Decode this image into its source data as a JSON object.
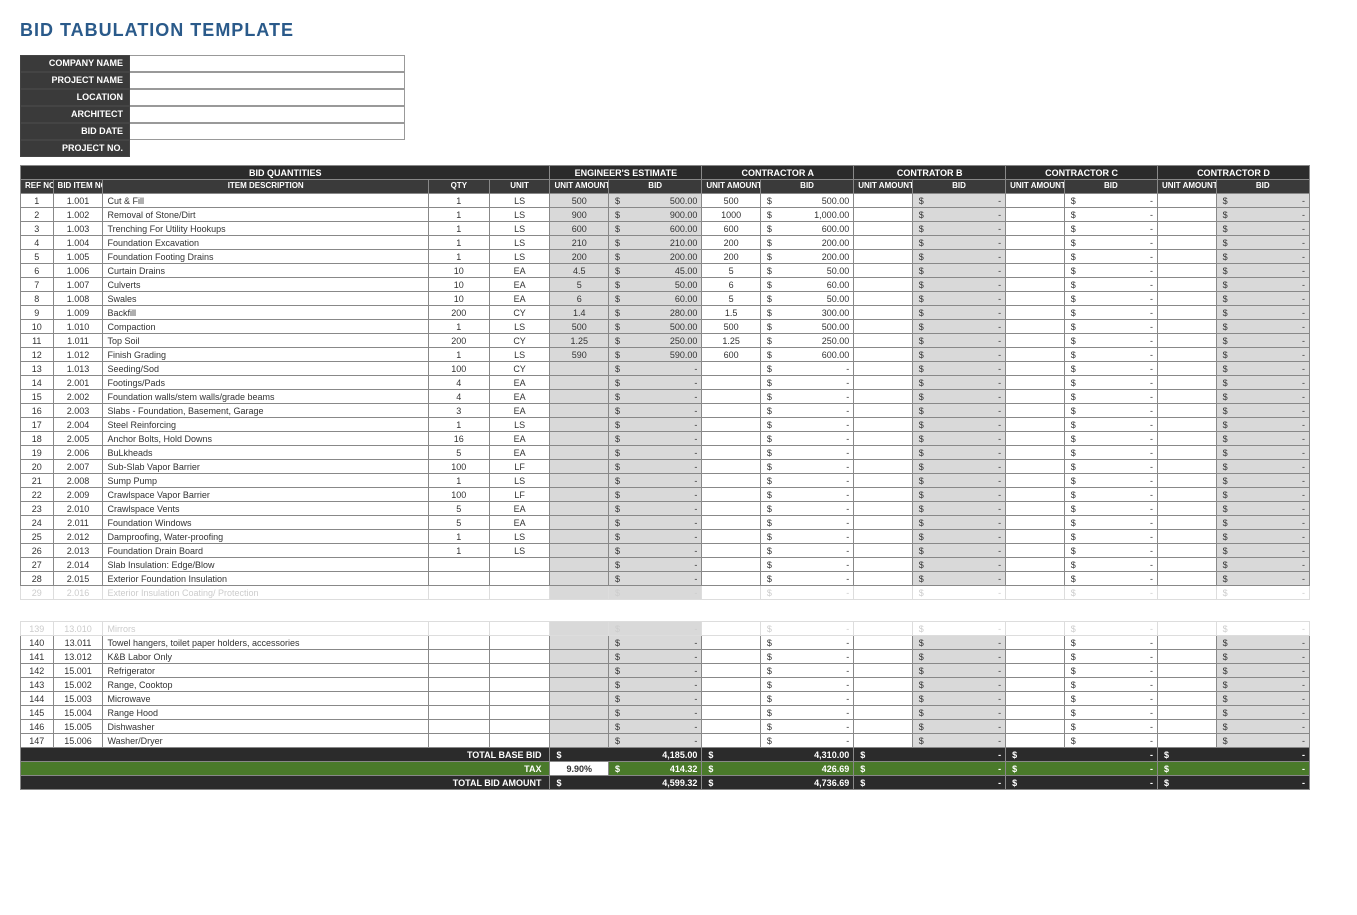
{
  "title": "BID TABULATION TEMPLATE",
  "meta_labels": [
    "COMPANY NAME",
    "PROJECT NAME",
    "LOCATION",
    "ARCHITECT",
    "BID DATE",
    "PROJECT NO."
  ],
  "group_headers": {
    "qty": "BID QUANTITIES",
    "eng": "ENGINEER'S ESTIMATE",
    "ca": "CONTRACTOR A",
    "cb": "CONTRATOR B",
    "cc": "CONTRACTOR C",
    "cd": "CONTRACTOR D"
  },
  "col_headers": {
    "ref": "REF NO.",
    "bid": "BID ITEM NO.",
    "desc": "ITEM DESCRIPTION",
    "qty": "QTY",
    "unit": "UNIT",
    "ua": "UNIT AMOUNT",
    "bidamt": "BID"
  },
  "rows_top": [
    {
      "r": "1",
      "b": "1.001",
      "d": "Cut & Fill",
      "q": "1",
      "u": "LS",
      "eu": "500",
      "eb": "500.00",
      "au": "500",
      "ab": "500.00"
    },
    {
      "r": "2",
      "b": "1.002",
      "d": "Removal of Stone/Dirt",
      "q": "1",
      "u": "LS",
      "eu": "900",
      "eb": "900.00",
      "au": "1000",
      "ab": "1,000.00"
    },
    {
      "r": "3",
      "b": "1.003",
      "d": "Trenching For Utility Hookups",
      "q": "1",
      "u": "LS",
      "eu": "600",
      "eb": "600.00",
      "au": "600",
      "ab": "600.00"
    },
    {
      "r": "4",
      "b": "1.004",
      "d": "Foundation Excavation",
      "q": "1",
      "u": "LS",
      "eu": "210",
      "eb": "210.00",
      "au": "200",
      "ab": "200.00"
    },
    {
      "r": "5",
      "b": "1.005",
      "d": "Foundation Footing Drains",
      "q": "1",
      "u": "LS",
      "eu": "200",
      "eb": "200.00",
      "au": "200",
      "ab": "200.00"
    },
    {
      "r": "6",
      "b": "1.006",
      "d": "Curtain Drains",
      "q": "10",
      "u": "EA",
      "eu": "4.5",
      "eb": "45.00",
      "au": "5",
      "ab": "50.00"
    },
    {
      "r": "7",
      "b": "1.007",
      "d": "Culverts",
      "q": "10",
      "u": "EA",
      "eu": "5",
      "eb": "50.00",
      "au": "6",
      "ab": "60.00"
    },
    {
      "r": "8",
      "b": "1.008",
      "d": "Swales",
      "q": "10",
      "u": "EA",
      "eu": "6",
      "eb": "60.00",
      "au": "5",
      "ab": "50.00"
    },
    {
      "r": "9",
      "b": "1.009",
      "d": "Backfill",
      "q": "200",
      "u": "CY",
      "eu": "1.4",
      "eb": "280.00",
      "au": "1.5",
      "ab": "300.00"
    },
    {
      "r": "10",
      "b": "1.010",
      "d": "Compaction",
      "q": "1",
      "u": "LS",
      "eu": "500",
      "eb": "500.00",
      "au": "500",
      "ab": "500.00"
    },
    {
      "r": "11",
      "b": "1.011",
      "d": "Top Soil",
      "q": "200",
      "u": "CY",
      "eu": "1.25",
      "eb": "250.00",
      "au": "1.25",
      "ab": "250.00"
    },
    {
      "r": "12",
      "b": "1.012",
      "d": "Finish Grading",
      "q": "1",
      "u": "LS",
      "eu": "590",
      "eb": "590.00",
      "au": "600",
      "ab": "600.00"
    },
    {
      "r": "13",
      "b": "1.013",
      "d": "Seeding/Sod",
      "q": "100",
      "u": "CY",
      "eu": "",
      "eb": "-",
      "au": "",
      "ab": "-"
    },
    {
      "r": "14",
      "b": "2.001",
      "d": "Footings/Pads",
      "q": "4",
      "u": "EA",
      "eu": "",
      "eb": "-",
      "au": "",
      "ab": "-"
    },
    {
      "r": "15",
      "b": "2.002",
      "d": "Foundation walls/stem walls/grade beams",
      "q": "4",
      "u": "EA",
      "eu": "",
      "eb": "-",
      "au": "",
      "ab": "-"
    },
    {
      "r": "16",
      "b": "2.003",
      "d": "Slabs - Foundation, Basement, Garage",
      "q": "3",
      "u": "EA",
      "eu": "",
      "eb": "-",
      "au": "",
      "ab": "-"
    },
    {
      "r": "17",
      "b": "2.004",
      "d": "Steel Reinforcing",
      "q": "1",
      "u": "LS",
      "eu": "",
      "eb": "-",
      "au": "",
      "ab": "-"
    },
    {
      "r": "18",
      "b": "2.005",
      "d": "Anchor Bolts, Hold Downs",
      "q": "16",
      "u": "EA",
      "eu": "",
      "eb": "-",
      "au": "",
      "ab": "-"
    },
    {
      "r": "19",
      "b": "2.006",
      "d": "BuLkheads",
      "q": "5",
      "u": "EA",
      "eu": "",
      "eb": "-",
      "au": "",
      "ab": "-"
    },
    {
      "r": "20",
      "b": "2.007",
      "d": "Sub-Slab Vapor Barrier",
      "q": "100",
      "u": "LF",
      "eu": "",
      "eb": "-",
      "au": "",
      "ab": "-"
    },
    {
      "r": "21",
      "b": "2.008",
      "d": "Sump Pump",
      "q": "1",
      "u": "LS",
      "eu": "",
      "eb": "-",
      "au": "",
      "ab": "-"
    },
    {
      "r": "22",
      "b": "2.009",
      "d": "Crawlspace Vapor Barrier",
      "q": "100",
      "u": "LF",
      "eu": "",
      "eb": "-",
      "au": "",
      "ab": "-"
    },
    {
      "r": "23",
      "b": "2.010",
      "d": "Crawlspace Vents",
      "q": "5",
      "u": "EA",
      "eu": "",
      "eb": "-",
      "au": "",
      "ab": "-"
    },
    {
      "r": "24",
      "b": "2.011",
      "d": "Foundation Windows",
      "q": "5",
      "u": "EA",
      "eu": "",
      "eb": "-",
      "au": "",
      "ab": "-"
    },
    {
      "r": "25",
      "b": "2.012",
      "d": "Damproofing, Water-proofing",
      "q": "1",
      "u": "LS",
      "eu": "",
      "eb": "-",
      "au": "",
      "ab": "-"
    },
    {
      "r": "26",
      "b": "2.013",
      "d": "Foundation Drain Board",
      "q": "1",
      "u": "LS",
      "eu": "",
      "eb": "-",
      "au": "",
      "ab": "-"
    },
    {
      "r": "27",
      "b": "2.014",
      "d": "Slab Insulation: Edge/Blow",
      "q": "",
      "u": "",
      "eu": "",
      "eb": "-",
      "au": "",
      "ab": "-"
    },
    {
      "r": "28",
      "b": "2.015",
      "d": "Exterior Foundation Insulation",
      "q": "",
      "u": "",
      "eu": "",
      "eb": "-",
      "au": "",
      "ab": "-"
    }
  ],
  "fade_top": {
    "r": "29",
    "b": "2.016",
    "d": "Exterior Insulation Coating/ Protection"
  },
  "fade_bot": {
    "r": "139",
    "b": "13.010",
    "d": "Mirrors"
  },
  "rows_bot": [
    {
      "r": "140",
      "b": "13.011",
      "d": "Towel hangers, toilet paper holders, accessories"
    },
    {
      "r": "141",
      "b": "13.012",
      "d": "K&B Labor Only"
    },
    {
      "r": "142",
      "b": "15.001",
      "d": "Refrigerator"
    },
    {
      "r": "143",
      "b": "15.002",
      "d": "Range, Cooktop"
    },
    {
      "r": "144",
      "b": "15.003",
      "d": "Microwave"
    },
    {
      "r": "145",
      "b": "15.004",
      "d": "Range Hood"
    },
    {
      "r": "146",
      "b": "15.005",
      "d": "Dishwasher"
    },
    {
      "r": "147",
      "b": "15.006",
      "d": "Washer/Dryer"
    }
  ],
  "totals": {
    "base_lbl": "TOTAL BASE BID",
    "tax_lbl": "TAX",
    "tax_rate": "9.90%",
    "total_lbl": "TOTAL BID AMOUNT",
    "eng_base": "4,185.00",
    "eng_tax": "414.32",
    "eng_tot": "4,599.32",
    "a_base": "4,310.00",
    "a_tax": "426.69",
    "a_tot": "4,736.69",
    "b": "-",
    "c": "-",
    "d": "-"
  },
  "colors": {
    "heading": "#2a5a8a",
    "dark": "#2b2b2b",
    "mid": "#3a3a3a",
    "green": "#4a7a2a",
    "shade": "#d9d9d9"
  }
}
